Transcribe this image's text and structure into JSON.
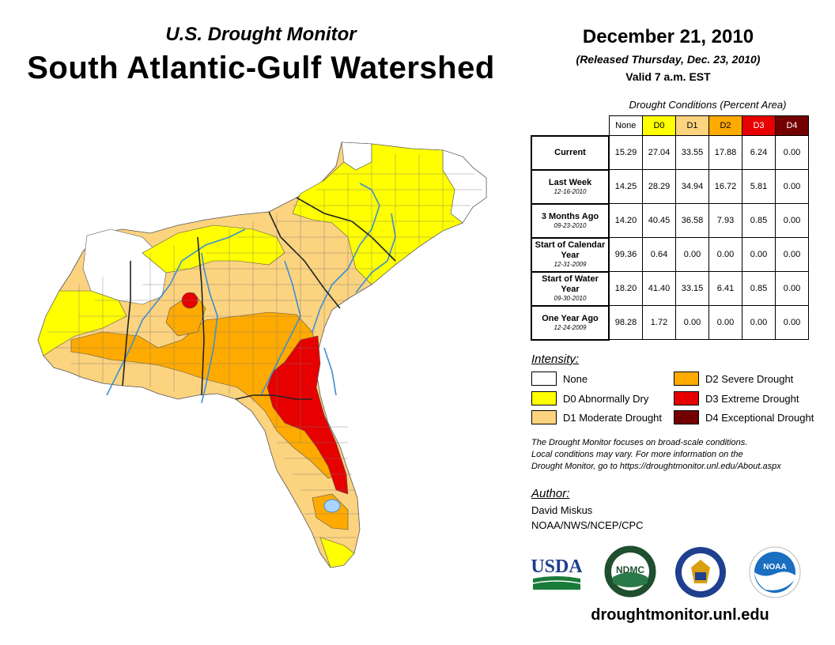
{
  "header": {
    "subtitle": "U.S. Drought Monitor",
    "title": "South Atlantic-Gulf Watershed",
    "date": "December 21, 2010",
    "released": "(Released Thursday, Dec. 23, 2010)",
    "valid": "Valid 7 a.m. EST"
  },
  "table": {
    "caption": "Drought Conditions (Percent Area)",
    "columns": [
      "None",
      "D0",
      "D1",
      "D2",
      "D3",
      "D4"
    ],
    "column_colors": [
      "#ffffff",
      "#ffff00",
      "#fcd37f",
      "#ffaa00",
      "#e60000",
      "#730000"
    ],
    "rows": [
      {
        "label": "Current",
        "date": "",
        "values": [
          "15.29",
          "27.04",
          "33.55",
          "17.88",
          "6.24",
          "0.00"
        ]
      },
      {
        "label": "Last Week",
        "date": "12-16-2010",
        "values": [
          "14.25",
          "28.29",
          "34.94",
          "16.72",
          "5.81",
          "0.00"
        ]
      },
      {
        "label": "3 Months Ago",
        "date": "09-23-2010",
        "values": [
          "14.20",
          "40.45",
          "36.58",
          "7.93",
          "0.85",
          "0.00"
        ]
      },
      {
        "label": "Start of Calendar Year",
        "date": "12-31-2009",
        "values": [
          "99.36",
          "0.64",
          "0.00",
          "0.00",
          "0.00",
          "0.00"
        ]
      },
      {
        "label": "Start of Water Year",
        "date": "09-30-2010",
        "values": [
          "18.20",
          "41.40",
          "33.15",
          "6.41",
          "0.85",
          "0.00"
        ]
      },
      {
        "label": "One Year Ago",
        "date": "12-24-2009",
        "values": [
          "98.28",
          "1.72",
          "0.00",
          "0.00",
          "0.00",
          "0.00"
        ]
      }
    ]
  },
  "legend": {
    "title": "Intensity:",
    "items": [
      {
        "label": "None",
        "color": "#ffffff"
      },
      {
        "label": "D0 Abnormally Dry",
        "color": "#ffff00"
      },
      {
        "label": "D1 Moderate Drought",
        "color": "#fcd37f"
      },
      {
        "label": "D2 Severe Drought",
        "color": "#ffaa00"
      },
      {
        "label": "D3 Extreme Drought",
        "color": "#e60000"
      },
      {
        "label": "D4 Exceptional Drought",
        "color": "#730000"
      }
    ]
  },
  "note": {
    "line1": "The Drought Monitor focuses on broad-scale conditions.",
    "line2": "Local conditions may vary. For more information on the",
    "line3": "Drought Monitor, go to https://droughtmonitor.unl.edu/About.aspx"
  },
  "author": {
    "label": "Author:",
    "name": "David Miskus",
    "org": "NOAA/NWS/NCEP/CPC"
  },
  "logos": {
    "usda": "USDA",
    "ndmc": "NDMC",
    "noaa": "NOAA"
  },
  "footer": {
    "website": "droughtmonitor.unl.edu"
  }
}
